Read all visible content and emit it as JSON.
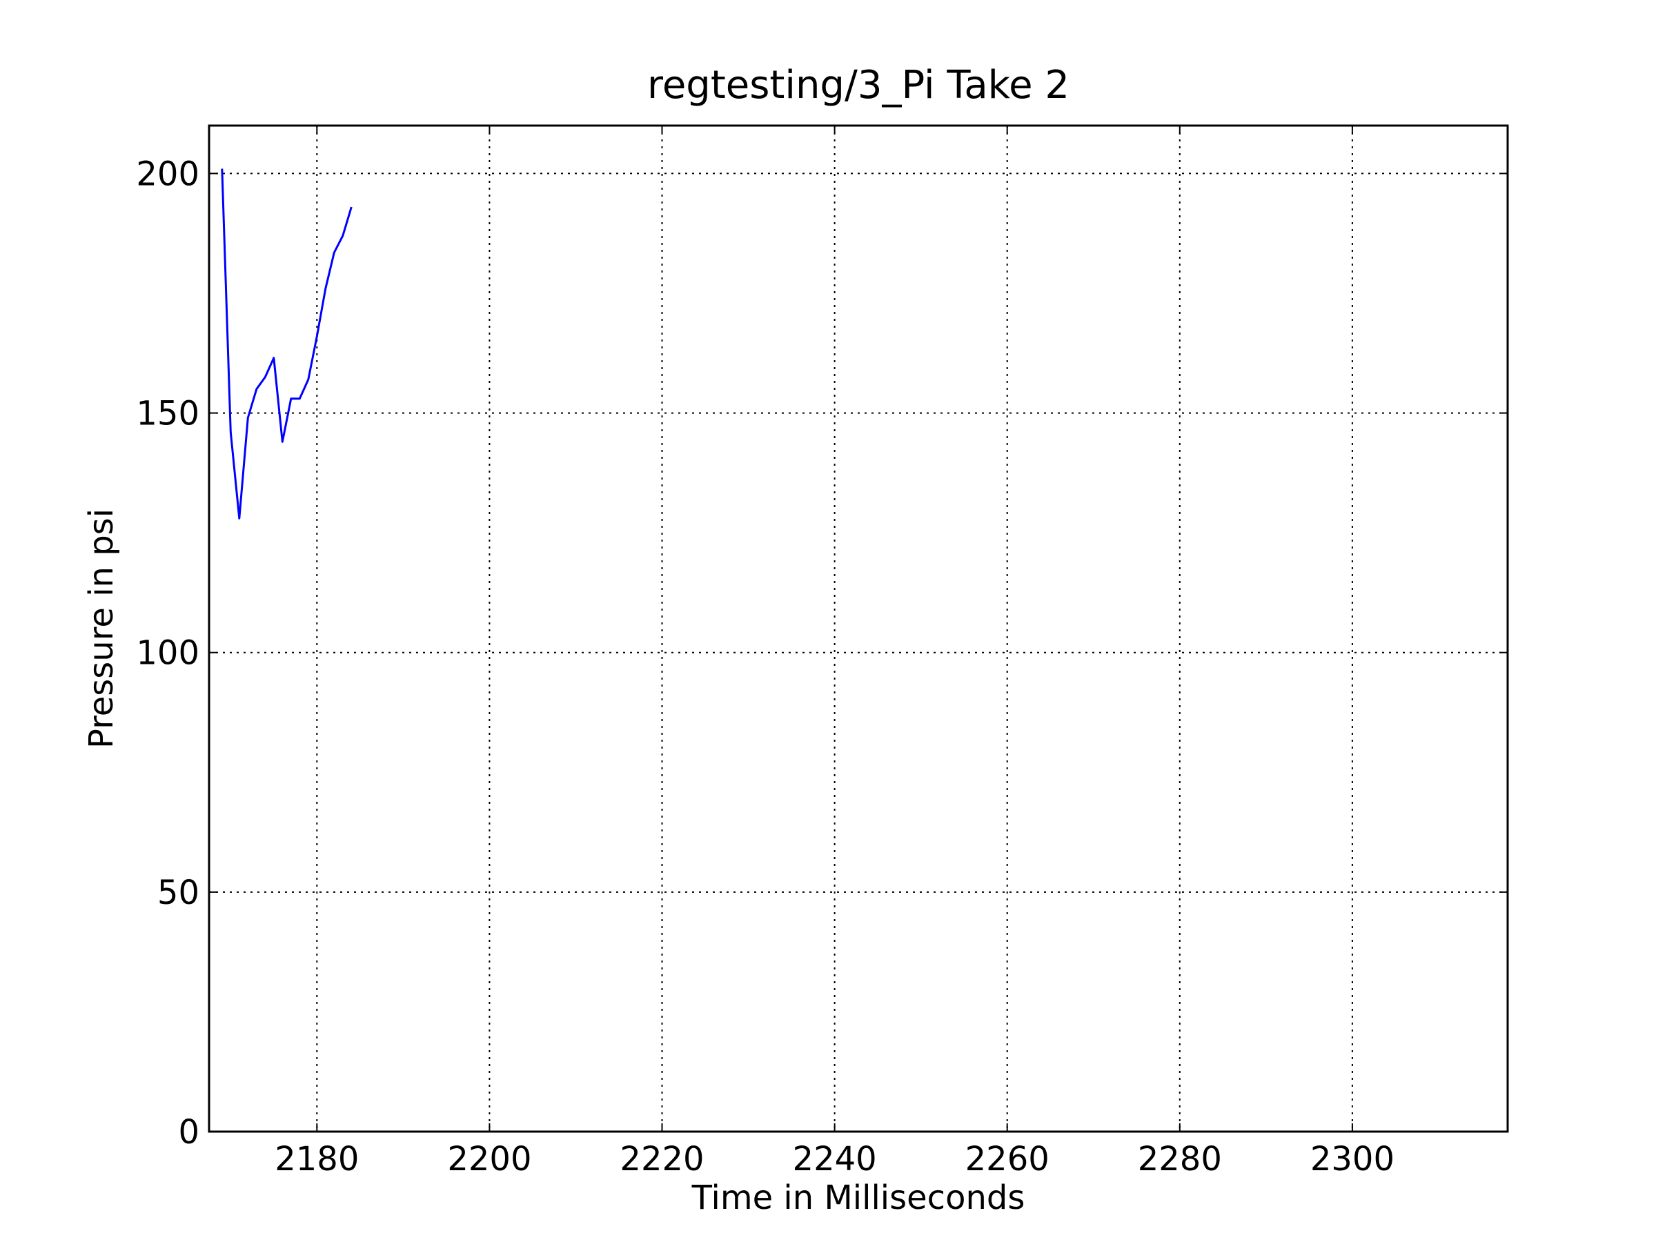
{
  "chart_data": {
    "type": "line",
    "title": "regtesting/3_Pi Take 2",
    "xlabel": "Time in Milliseconds",
    "ylabel": "Pressure in psi",
    "xlim": [
      2167.5,
      2318
    ],
    "ylim": [
      0,
      210
    ],
    "x_ticks": [
      2180,
      2200,
      2220,
      2240,
      2260,
      2280,
      2300
    ],
    "y_ticks": [
      0,
      50,
      100,
      150,
      200
    ],
    "grid": true,
    "series": [
      {
        "color": "#0000ff",
        "x": [
          2169,
          2170,
          2171,
          2172,
          2173,
          2174,
          2175,
          2176,
          2177,
          2178,
          2179,
          2180,
          2181,
          2182,
          2183,
          2184
        ],
        "y": [
          201,
          146,
          128,
          149,
          155,
          157.5,
          161.5,
          144,
          153,
          153,
          157,
          166,
          176,
          183.5,
          187,
          193
        ]
      }
    ]
  }
}
